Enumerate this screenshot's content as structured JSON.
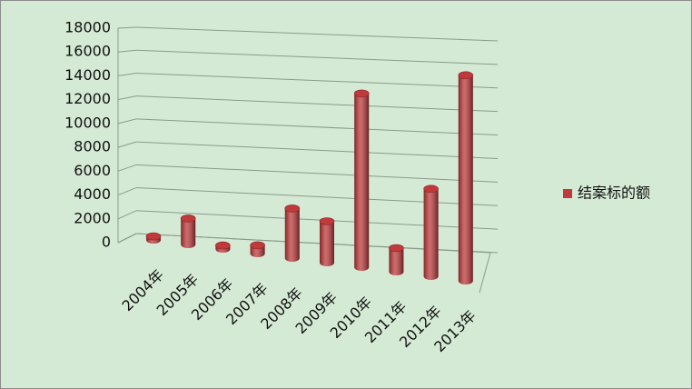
{
  "chart_data": {
    "type": "bar",
    "categories": [
      "2004年",
      "2005年",
      "2006年",
      "2007年",
      "2008年",
      "2009年",
      "2010年",
      "2011年",
      "2012年",
      "2013年"
    ],
    "series": [
      {
        "name": "结案标的额",
        "color": "#c0393b",
        "values": [
          300,
          2200,
          300,
          700,
          4200,
          3500,
          14700,
          2000,
          7400,
          17400
        ]
      }
    ],
    "ylim": [
      0,
      18000
    ],
    "yticks": [
      0,
      2000,
      4000,
      6000,
      8000,
      10000,
      12000,
      14000,
      16000,
      18000
    ],
    "grid": true,
    "legend": "right"
  }
}
